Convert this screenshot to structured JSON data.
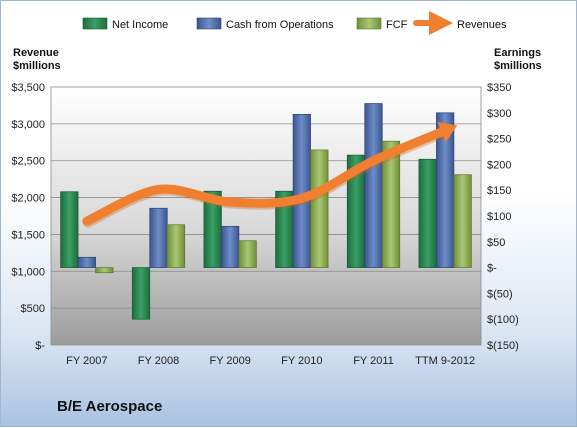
{
  "colors": {
    "net_income": "#2e8b57",
    "cash_from_operations": "#4f6fae",
    "fcf": "#8fb055",
    "revenues": "#f07f2f"
  },
  "chart_data": {
    "type": "bar",
    "title": "B/E Aerospace",
    "categories": [
      "FY 2007",
      "FY 2008",
      "FY 2009",
      "FY 2010",
      "FY 2011",
      "TTM 9-2012"
    ],
    "y_left": {
      "label_line1": "Revenue",
      "label_line2": "$millions",
      "ylim": [
        0,
        3500
      ],
      "ticks": [
        {
          "value": 0,
          "label": "$-"
        },
        {
          "value": 500,
          "label": "$500"
        },
        {
          "value": 1000,
          "label": "$1,000"
        },
        {
          "value": 1500,
          "label": "$1,500"
        },
        {
          "value": 2000,
          "label": "$2,000"
        },
        {
          "value": 2500,
          "label": "$2,500"
        },
        {
          "value": 3000,
          "label": "$3,000"
        },
        {
          "value": 3500,
          "label": "$3,500"
        }
      ]
    },
    "y_right": {
      "label_line1": "Earnings",
      "label_line2": "$millions",
      "ylim": [
        -150,
        350
      ],
      "ticks": [
        {
          "value": -150,
          "label": "$(150)"
        },
        {
          "value": -100,
          "label": "$(100)"
        },
        {
          "value": -50,
          "label": "$(50)"
        },
        {
          "value": 0,
          "label": "$-"
        },
        {
          "value": 50,
          "label": "$50"
        },
        {
          "value": 100,
          "label": "$100"
        },
        {
          "value": 150,
          "label": "$150"
        },
        {
          "value": 200,
          "label": "$200"
        },
        {
          "value": 250,
          "label": "$250"
        },
        {
          "value": 300,
          "label": "$300"
        },
        {
          "value": 350,
          "label": "$350"
        }
      ]
    },
    "series": [
      {
        "name": "Net Income",
        "type": "bar",
        "axis": "right",
        "values": [
          147,
          -100,
          148,
          148,
          218,
          210
        ]
      },
      {
        "name": "Cash from Operations",
        "type": "bar",
        "axis": "right",
        "values": [
          20,
          115,
          80,
          297,
          318,
          300
        ]
      },
      {
        "name": "FCF",
        "type": "bar",
        "axis": "right",
        "values": [
          -10,
          83,
          52,
          228,
          245,
          180
        ]
      },
      {
        "name": "Revenues",
        "type": "line",
        "axis": "left",
        "values": [
          1680,
          2110,
          1940,
          1990,
          2500,
          2910
        ]
      }
    ],
    "grid": true,
    "legend": "top"
  }
}
